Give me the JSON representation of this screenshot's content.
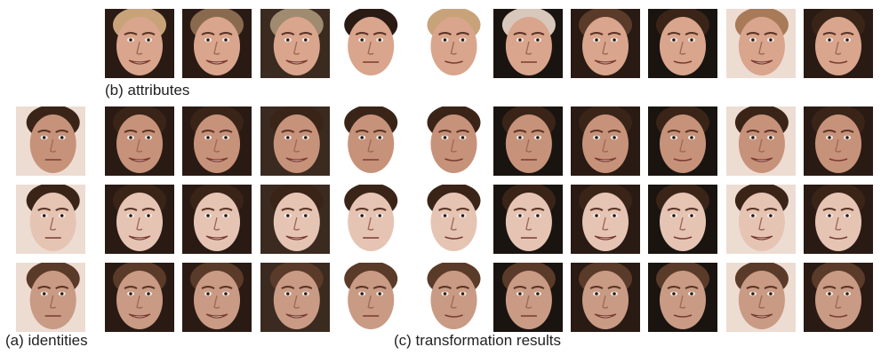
{
  "captions": {
    "attributes": "(b) attributes",
    "identities": "(a) identities",
    "results": "(c) transformation results"
  },
  "colors": {
    "skin_base": "#d9a58c",
    "skin_shadow": "#b98068",
    "bg_dark": "#2a1a14",
    "bg_light": "#eddcd2"
  },
  "grid": {
    "attribute_count": 10,
    "identity_count": 3
  },
  "attributes": [
    {
      "name": "attribute-1",
      "hair": "#c8a37a",
      "bg": "#2a1a14",
      "smile": 1,
      "turn": 0
    },
    {
      "name": "attribute-2",
      "hair": "#8a6a4e",
      "bg": "#2a1a14",
      "smile": 1,
      "turn": 0
    },
    {
      "name": "attribute-3",
      "hair": "#a08a70",
      "bg": "#3a2a20",
      "smile": 1,
      "turn": 0.1
    },
    {
      "name": "attribute-4",
      "hair": "#2a1a14",
      "bg": "#ffffff",
      "smile": 0,
      "turn": -0.1
    },
    {
      "name": "attribute-5",
      "hair": "#c8a37a",
      "bg": "#ffffff",
      "smile": 0.5,
      "turn": 0.25
    },
    {
      "name": "attribute-6",
      "hair": "#d8c8bc",
      "bg": "#1a1410",
      "smile": 0,
      "turn": 0.05
    },
    {
      "name": "attribute-7",
      "hair": "#5a3a28",
      "bg": "#2a1a14",
      "smile": 1,
      "turn": 0
    },
    {
      "name": "attribute-8",
      "hair": "#3a2418",
      "bg": "#1a1410",
      "smile": 0.5,
      "turn": 0
    },
    {
      "name": "attribute-9",
      "hair": "#a87a58",
      "bg": "#eddcd2",
      "smile": 1,
      "turn": 0.05
    },
    {
      "name": "attribute-10",
      "hair": "#3a2418",
      "bg": "#2a1a14",
      "smile": 0.5,
      "turn": 0
    }
  ],
  "identities": [
    {
      "name": "identity-1",
      "hair": "#3a2418",
      "skin": "#c7927a"
    },
    {
      "name": "identity-2",
      "hair": "#3a2418",
      "skin": "#e6c4b4"
    },
    {
      "name": "identity-3",
      "hair": "#5a3a28",
      "skin": "#c99a84"
    }
  ]
}
